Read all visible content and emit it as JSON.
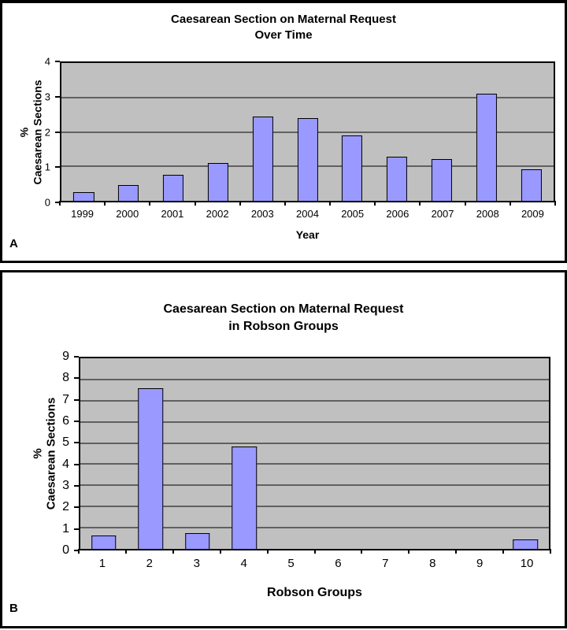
{
  "figure": {
    "panels": [
      {
        "corner_label": "A"
      },
      {
        "corner_label": "B"
      }
    ]
  },
  "chart_data": [
    {
      "type": "bar",
      "panel": "A",
      "title": "Caesarean Section on Maternal Request Over Time",
      "title_lines": [
        "Caesarean Section on Maternal Request",
        "Over Time"
      ],
      "categories": [
        "1999",
        "2000",
        "2001",
        "2002",
        "2003",
        "2004",
        "2005",
        "2006",
        "2007",
        "2008",
        "2009"
      ],
      "values": [
        0.25,
        0.45,
        0.75,
        1.1,
        2.45,
        2.4,
        1.9,
        1.27,
        1.22,
        3.1,
        0.92
      ],
      "xlabel": "Year",
      "ylabel": "% Caesarean Sections",
      "ylabel_lines": [
        "%",
        "Caesarean Sections"
      ],
      "ylim": [
        0,
        4
      ],
      "ytick_step": 1,
      "yticks": [
        0,
        1,
        2,
        3,
        4
      ],
      "grid": true,
      "legend": "none",
      "bar_color": "#9999FF",
      "bar_border_color": "#000000",
      "plot_bg_color": "#C0C0C0"
    },
    {
      "type": "bar",
      "panel": "B",
      "title": "Caesarean Section on Maternal Request in Robson Groups",
      "title_lines": [
        "Caesarean Section on Maternal Request",
        "in Robson Groups"
      ],
      "categories": [
        "1",
        "2",
        "3",
        "4",
        "5",
        "6",
        "7",
        "8",
        "9",
        "10"
      ],
      "values": [
        0.65,
        7.6,
        0.75,
        4.85,
        0,
        0,
        0,
        0,
        0,
        0.45
      ],
      "xlabel": "Robson Groups",
      "ylabel": "% Caesarean Sections",
      "ylabel_lines": [
        "%",
        "Caesarean Sections"
      ],
      "ylim": [
        0,
        9
      ],
      "ytick_step": 1,
      "yticks": [
        0,
        1,
        2,
        3,
        4,
        5,
        6,
        7,
        8,
        9
      ],
      "grid": true,
      "legend": "none",
      "bar_color": "#9999FF",
      "bar_border_color": "#000000",
      "plot_bg_color": "#C0C0C0"
    }
  ]
}
